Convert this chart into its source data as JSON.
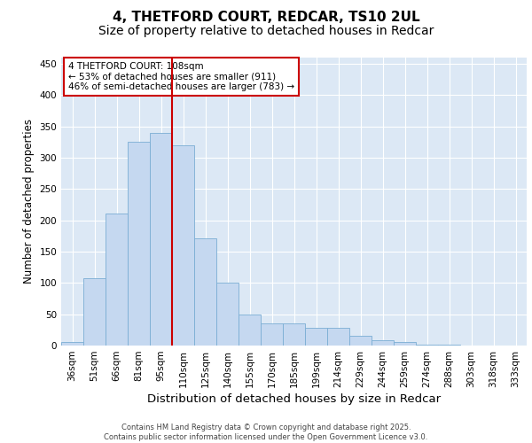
{
  "title_line1": "4, THETFORD COURT, REDCAR, TS10 2UL",
  "title_line2": "Size of property relative to detached houses in Redcar",
  "xlabel": "Distribution of detached houses by size in Redcar",
  "ylabel": "Number of detached properties",
  "categories": [
    "36sqm",
    "51sqm",
    "66sqm",
    "81sqm",
    "95sqm",
    "110sqm",
    "125sqm",
    "140sqm",
    "155sqm",
    "170sqm",
    "185sqm",
    "199sqm",
    "214sqm",
    "229sqm",
    "244sqm",
    "259sqm",
    "274sqm",
    "288sqm",
    "303sqm",
    "318sqm",
    "333sqm"
  ],
  "values": [
    5,
    107,
    211,
    325,
    340,
    320,
    171,
    100,
    50,
    35,
    35,
    29,
    29,
    15,
    8,
    5,
    1,
    1,
    0,
    0,
    0
  ],
  "bar_color": "#c5d8f0",
  "bar_edge_color": "#7aadd4",
  "vline_x": 4.5,
  "vline_color": "#cc0000",
  "annotation_text": "4 THETFORD COURT: 108sqm\n← 53% of detached houses are smaller (911)\n46% of semi-detached houses are larger (783) →",
  "annotation_box_color": "#ffffff",
  "annotation_box_edge": "#cc0000",
  "ylim": [
    0,
    460
  ],
  "yticks": [
    0,
    50,
    100,
    150,
    200,
    250,
    300,
    350,
    400,
    450
  ],
  "fig_background": "#ffffff",
  "plot_background": "#dce8f5",
  "grid_color": "#ffffff",
  "footnote": "Contains HM Land Registry data © Crown copyright and database right 2025.\nContains public sector information licensed under the Open Government Licence v3.0.",
  "title_fontsize": 11,
  "subtitle_fontsize": 10,
  "xlabel_fontsize": 9.5,
  "ylabel_fontsize": 8.5,
  "tick_fontsize": 7.5,
  "annot_fontsize": 7.5,
  "footnote_fontsize": 6
}
